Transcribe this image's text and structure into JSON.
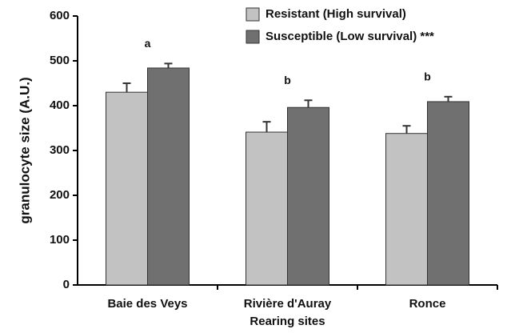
{
  "chart_data": {
    "type": "bar",
    "x_label": "Rearing sites",
    "y_label": "granulocyte size (A.U.)",
    "categories": [
      "Baie des Veys",
      "Rivière d'Auray",
      "Ronce"
    ],
    "group_labels": [
      "a",
      "b",
      "b"
    ],
    "series": [
      {
        "name": "Resistant (High survival)",
        "color": "#c2c2c2",
        "values": [
          430,
          341,
          338
        ],
        "errors": [
          20,
          23,
          17
        ]
      },
      {
        "name": "Susceptible (Low survival) ***",
        "color": "#707070",
        "values": [
          484,
          396,
          409
        ],
        "errors": [
          10,
          16,
          11
        ]
      }
    ],
    "ylim": [
      0,
      600
    ],
    "yticks": [
      0,
      100,
      200,
      300,
      400,
      500,
      600
    ],
    "legend": "top-right"
  }
}
